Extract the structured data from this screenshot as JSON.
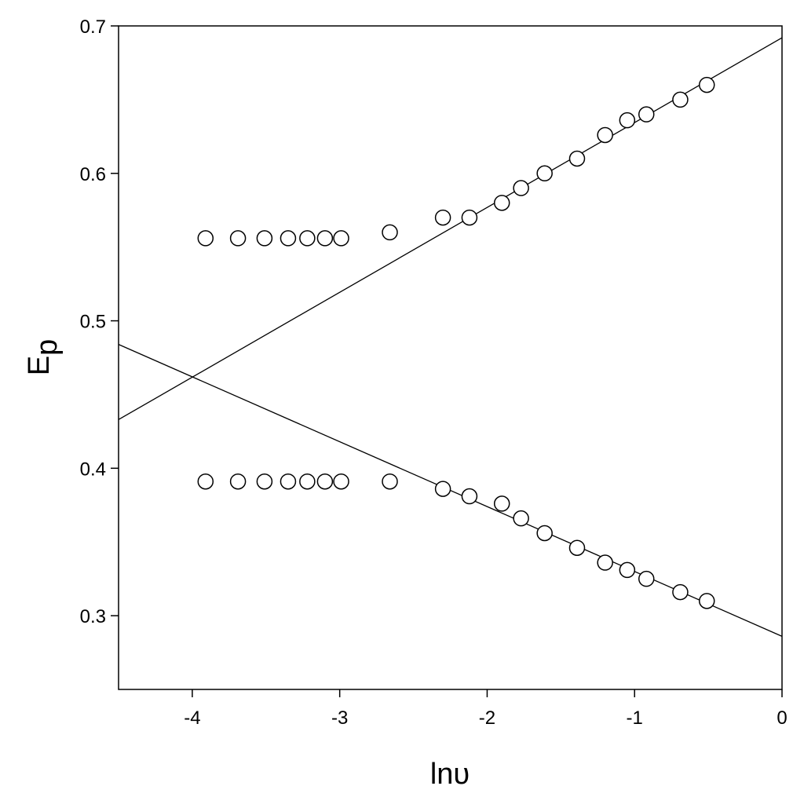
{
  "chart_data": {
    "type": "scatter",
    "title": "",
    "xlabel": "lnυ",
    "ylabel_main": "E",
    "ylabel_sub": "p",
    "xlim": [
      -4.5,
      0
    ],
    "ylim": [
      0.25,
      0.7
    ],
    "xticks": [
      -4,
      -3,
      -2,
      -1,
      0
    ],
    "xtick_labels": [
      "-4",
      "-3",
      "-2",
      "-1",
      "0"
    ],
    "yticks": [
      0.3,
      0.4,
      0.5,
      0.6,
      0.7
    ],
    "ytick_labels": [
      "0.3",
      "0.4",
      "0.5",
      "0.6",
      "0.7"
    ],
    "grid": false,
    "series": [
      {
        "marker": "open-circle",
        "points": [
          [
            -3.91,
            0.556
          ],
          [
            -3.69,
            0.556
          ],
          [
            -3.51,
            0.556
          ],
          [
            -3.35,
            0.556
          ],
          [
            -3.22,
            0.556
          ],
          [
            -3.1,
            0.556
          ],
          [
            -2.99,
            0.556
          ],
          [
            -2.66,
            0.56
          ],
          [
            -2.3,
            0.57
          ],
          [
            -2.12,
            0.57
          ],
          [
            -1.9,
            0.58
          ],
          [
            -1.77,
            0.59
          ],
          [
            -1.61,
            0.6
          ],
          [
            -1.39,
            0.61
          ],
          [
            -1.2,
            0.626
          ],
          [
            -1.05,
            0.636
          ],
          [
            -0.92,
            0.64
          ],
          [
            -0.69,
            0.65
          ],
          [
            -0.51,
            0.66
          ]
        ]
      },
      {
        "marker": "open-circle",
        "points": [
          [
            -3.91,
            0.391
          ],
          [
            -3.69,
            0.391
          ],
          [
            -3.51,
            0.391
          ],
          [
            -3.35,
            0.391
          ],
          [
            -3.22,
            0.391
          ],
          [
            -3.1,
            0.391
          ],
          [
            -2.99,
            0.391
          ],
          [
            -2.66,
            0.391
          ],
          [
            -2.3,
            0.386
          ],
          [
            -2.12,
            0.381
          ],
          [
            -1.9,
            0.376
          ],
          [
            -1.77,
            0.366
          ],
          [
            -1.61,
            0.356
          ],
          [
            -1.39,
            0.346
          ],
          [
            -1.2,
            0.336
          ],
          [
            -1.05,
            0.331
          ],
          [
            -0.92,
            0.325
          ],
          [
            -0.69,
            0.316
          ],
          [
            -0.51,
            0.31
          ]
        ]
      }
    ],
    "fit_lines": [
      {
        "x": [
          -4.5,
          0
        ],
        "y": [
          0.433,
          0.692
        ]
      },
      {
        "x": [
          -4.5,
          0
        ],
        "y": [
          0.484,
          0.286
        ]
      }
    ]
  }
}
